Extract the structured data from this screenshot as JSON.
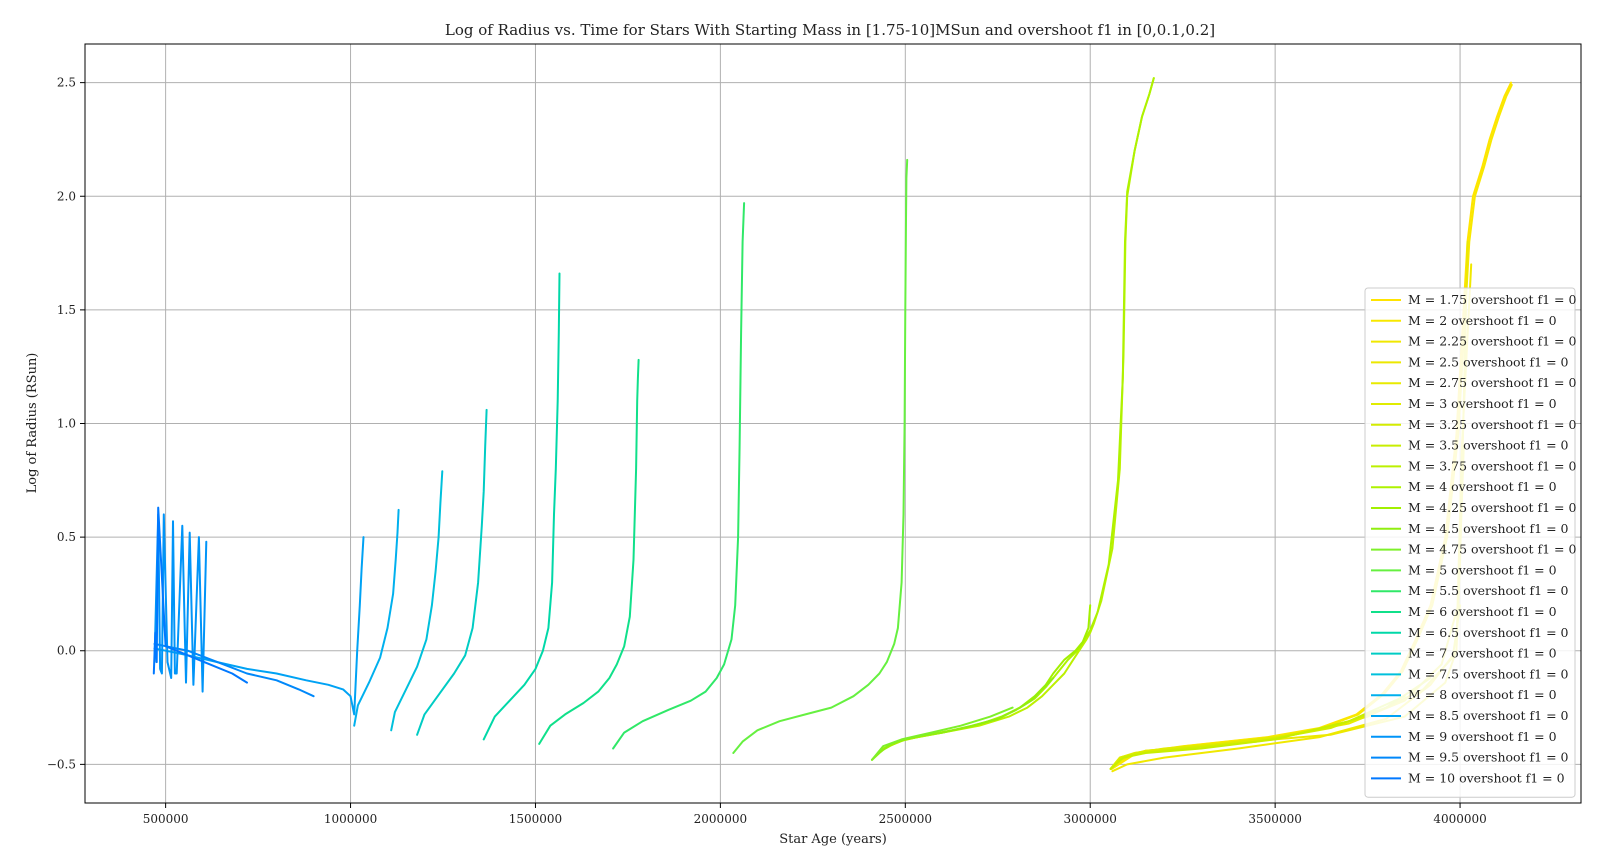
{
  "chart_data": {
    "type": "line",
    "title": "Log of Radius vs. Time for Stars With Starting Mass in [1.75-10]MSun and overshoot f1 in [0,0.1,0.2]",
    "xlabel": "Star Age (years)",
    "ylabel": "Log of Radius (RSun)",
    "xlim": [
      282000,
      4327000
    ],
    "ylim": [
      -0.67,
      2.67
    ],
    "xticks": [
      500000,
      1000000,
      1500000,
      2000000,
      2500000,
      3000000,
      3500000,
      4000000
    ],
    "xtick_labels": [
      "500000",
      "1000000",
      "1500000",
      "2000000",
      "2500000",
      "3000000",
      "3500000",
      "4000000"
    ],
    "yticks": [
      -0.5,
      0.0,
      0.5,
      1.0,
      1.5,
      2.0,
      2.5
    ],
    "ytick_labels": [
      "−0.5",
      "0.0",
      "0.5",
      "1.0",
      "1.5",
      "2.0",
      "2.5"
    ],
    "grid": true,
    "legend_position": "right",
    "series": [
      {
        "name": "M = 1.75 overshoot f1 = 0",
        "color": "#ffe400",
        "x": [
          3055000,
          3120000,
          3250000,
          3480000,
          3620000,
          3720000,
          3790000,
          3840000,
          3880000,
          3920000,
          3960000,
          3990000,
          4020000,
          4035000,
          4060000,
          4080000,
          4100000,
          4120000,
          4138000
        ],
        "y": [
          -0.52,
          -0.45,
          -0.42,
          -0.38,
          -0.34,
          -0.28,
          -0.19,
          -0.09,
          0.05,
          0.2,
          0.5,
          0.95,
          1.8,
          2.0,
          2.13,
          2.25,
          2.35,
          2.44,
          2.5
        ]
      },
      {
        "name": "M = 2 overshoot f1 = 0",
        "color": "#f8e800",
        "x": [
          3058000,
          3125000,
          3255000,
          3485000,
          3625000,
          3725000,
          3795000,
          3845000,
          3885000,
          3925000,
          3965000,
          3995000,
          4025000,
          4040000,
          4065000,
          4085000,
          4105000,
          4125000,
          4140000
        ],
        "y": [
          -0.52,
          -0.45,
          -0.42,
          -0.38,
          -0.34,
          -0.28,
          -0.19,
          -0.09,
          0.05,
          0.2,
          0.5,
          0.95,
          1.8,
          2.0,
          2.13,
          2.25,
          2.35,
          2.44,
          2.49
        ]
      },
      {
        "name": "M = 2.25 overshoot f1 = 0",
        "color": "#f0e800",
        "x": [
          3060000,
          3100000,
          3200000,
          3400000,
          3620000,
          3800000,
          3920000,
          3990000,
          3995000,
          4005000,
          4030000
        ],
        "y": [
          -0.53,
          -0.5,
          -0.47,
          -0.43,
          -0.38,
          -0.3,
          -0.15,
          0.0,
          0.3,
          0.9,
          1.7
        ]
      },
      {
        "name": "M = 2.5 overshoot f1 = 0",
        "color": "#ece800",
        "x": [
          3055000,
          3080000,
          3150000,
          3350000,
          3650000,
          3850000,
          3960000,
          3990000,
          4000000,
          4010000,
          4020000
        ],
        "y": [
          -0.52,
          -0.48,
          -0.44,
          -0.41,
          -0.37,
          -0.29,
          -0.14,
          0.0,
          0.4,
          1.1,
          1.8
        ]
      },
      {
        "name": "M = 2.75 overshoot f1 = 0",
        "color": "#e8ea00",
        "x": [
          3055000,
          3080000,
          3150000,
          3300000,
          3500000,
          3700000,
          3850000,
          3950000,
          3995000,
          4010000
        ],
        "y": [
          -0.52,
          -0.47,
          -0.44,
          -0.42,
          -0.38,
          -0.32,
          -0.22,
          -0.06,
          0.2,
          0.9
        ]
      },
      {
        "name": "M = 3 overshoot f1 = 0",
        "color": "#e0ec00",
        "x": [
          3055000,
          3080000,
          3120000,
          3200000,
          3350000,
          3550000,
          3750000,
          3900000,
          3980000,
          4000000
        ],
        "y": [
          -0.52,
          -0.47,
          -0.45,
          -0.43,
          -0.41,
          -0.37,
          -0.29,
          -0.17,
          -0.03,
          0.2
        ]
      },
      {
        "name": "M = 3.25 overshoot f1 = 0",
        "color": "#d4ec00",
        "x": [
          3055000,
          3085000,
          3130000,
          3250000,
          3450000,
          3650000,
          3800000,
          3920000
        ],
        "y": [
          -0.52,
          -0.47,
          -0.45,
          -0.43,
          -0.4,
          -0.34,
          -0.25,
          -0.12
        ]
      },
      {
        "name": "M = 3.5 overshoot f1 = 0",
        "color": "#c8ee00",
        "x": [
          3055000,
          3090000,
          3150000,
          3300000,
          3500000,
          3700000,
          3850000
        ],
        "y": [
          -0.52,
          -0.47,
          -0.45,
          -0.43,
          -0.39,
          -0.31,
          -0.2
        ]
      },
      {
        "name": "M = 3.75 overshoot f1 = 0",
        "color": "#bcf000",
        "x": [
          2410000,
          2440000,
          2500000,
          2600000,
          2700000,
          2780000,
          2830000,
          2870000,
          2900000,
          2930000,
          2950000,
          2970000,
          2990000,
          3000000,
          3010000,
          3030000,
          3060000,
          3080000,
          3090000,
          3095000,
          3100000,
          3120000,
          3140000,
          3160000,
          3172000
        ],
        "y": [
          -0.48,
          -0.43,
          -0.39,
          -0.36,
          -0.33,
          -0.29,
          -0.25,
          -0.2,
          -0.15,
          -0.1,
          -0.05,
          0.0,
          0.05,
          0.08,
          0.12,
          0.22,
          0.45,
          0.8,
          1.3,
          1.8,
          2.0,
          2.2,
          2.35,
          2.45,
          2.52
        ]
      },
      {
        "name": "M = 4 overshoot f1 = 0",
        "color": "#aef200",
        "x": [
          2410000,
          2440000,
          2500000,
          2600000,
          2690000,
          2760000,
          2810000,
          2850000,
          2880000,
          2910000,
          2940000,
          2965000,
          2985000,
          3000000,
          3020000,
          3050000,
          3075000,
          3088000,
          3094000,
          3100000,
          3120000,
          3140000,
          3160000,
          3172000
        ],
        "y": [
          -0.48,
          -0.43,
          -0.39,
          -0.36,
          -0.33,
          -0.29,
          -0.25,
          -0.21,
          -0.16,
          -0.1,
          -0.04,
          0.0,
          0.05,
          0.09,
          0.17,
          0.38,
          0.75,
          1.2,
          1.8,
          2.02,
          2.2,
          2.35,
          2.45,
          2.52
        ]
      },
      {
        "name": "M = 4.25 overshoot f1 = 0",
        "color": "#a2f000",
        "x": [
          2410000,
          2435000,
          2480000,
          2560000,
          2660000,
          2750000,
          2810000,
          2850000,
          2880000,
          2900000,
          2930000,
          2960000,
          2980000,
          2995000,
          3000000
        ],
        "y": [
          -0.48,
          -0.44,
          -0.4,
          -0.37,
          -0.34,
          -0.3,
          -0.25,
          -0.2,
          -0.15,
          -0.1,
          -0.04,
          0.0,
          0.04,
          0.1,
          0.2
        ]
      },
      {
        "name": "M = 4.5 overshoot f1 = 0",
        "color": "#90ee10",
        "x": [
          2410000,
          2430000,
          2460000,
          2520000,
          2600000,
          2680000,
          2750000,
          2800000,
          2840000,
          2870000,
          2900000
        ],
        "y": [
          -0.48,
          -0.45,
          -0.41,
          -0.38,
          -0.36,
          -0.33,
          -0.3,
          -0.26,
          -0.22,
          -0.17,
          -0.12
        ]
      },
      {
        "name": "M = 4.75 overshoot f1 = 0",
        "color": "#7ef02a",
        "x": [
          2410000,
          2440000,
          2490000,
          2570000,
          2650000,
          2730000,
          2790000
        ],
        "y": [
          -0.48,
          -0.42,
          -0.39,
          -0.36,
          -0.33,
          -0.29,
          -0.25
        ]
      },
      {
        "name": "M = 5 overshoot f1 = 0",
        "color": "#66f040",
        "x": [
          2035000,
          2060000,
          2100000,
          2160000,
          2230000,
          2300000,
          2360000,
          2400000,
          2430000,
          2450000,
          2470000,
          2480000,
          2490000,
          2495000,
          2498000,
          2500000,
          2502000,
          2503000,
          2505000
        ],
        "y": [
          -0.45,
          -0.4,
          -0.35,
          -0.31,
          -0.28,
          -0.25,
          -0.2,
          -0.15,
          -0.1,
          -0.05,
          0.03,
          0.1,
          0.3,
          0.6,
          1.0,
          1.5,
          1.9,
          2.08,
          2.16
        ]
      },
      {
        "name": "M = 5.5 overshoot f1 = 0",
        "color": "#30e868",
        "x": [
          1710000,
          1740000,
          1790000,
          1860000,
          1920000,
          1960000,
          1990000,
          2010000,
          2030000,
          2040000,
          2048000,
          2052000,
          2056000,
          2060000,
          2064000
        ],
        "y": [
          -0.43,
          -0.36,
          -0.31,
          -0.26,
          -0.22,
          -0.18,
          -0.12,
          -0.06,
          0.05,
          0.2,
          0.5,
          0.9,
          1.4,
          1.8,
          1.97
        ]
      },
      {
        "name": "M = 6 overshoot f1 = 0",
        "color": "#10e08a",
        "x": [
          1510000,
          1540000,
          1580000,
          1630000,
          1670000,
          1700000,
          1720000,
          1740000,
          1755000,
          1765000,
          1772000,
          1775000,
          1777000,
          1779000
        ],
        "y": [
          -0.41,
          -0.33,
          -0.28,
          -0.23,
          -0.18,
          -0.12,
          -0.06,
          0.02,
          0.15,
          0.4,
          0.8,
          1.1,
          1.2,
          1.28
        ]
      },
      {
        "name": "M = 6.5 overshoot f1 = 0",
        "color": "#00d8a8",
        "x": [
          1360000,
          1390000,
          1430000,
          1470000,
          1500000,
          1520000,
          1535000,
          1545000,
          1550000,
          1555000,
          1560000,
          1563000,
          1565000
        ],
        "y": [
          -0.39,
          -0.29,
          -0.22,
          -0.15,
          -0.08,
          0.0,
          0.1,
          0.3,
          0.6,
          0.8,
          1.1,
          1.4,
          1.66
        ]
      },
      {
        "name": "M = 7 overshoot f1 = 0",
        "color": "#00ccc4",
        "x": [
          1180000,
          1200000,
          1240000,
          1280000,
          1310000,
          1330000,
          1345000,
          1355000,
          1360000,
          1364000,
          1368000
        ],
        "y": [
          -0.37,
          -0.28,
          -0.19,
          -0.1,
          -0.02,
          0.1,
          0.3,
          0.55,
          0.7,
          0.9,
          1.06
        ]
      },
      {
        "name": "M = 7.5 overshoot f1 = 0",
        "color": "#00c0dc",
        "x": [
          1110000,
          1120000,
          1150000,
          1180000,
          1205000,
          1220000,
          1230000,
          1238000,
          1243000,
          1248000
        ],
        "y": [
          -0.35,
          -0.27,
          -0.17,
          -0.07,
          0.05,
          0.2,
          0.35,
          0.5,
          0.65,
          0.79
        ]
      },
      {
        "name": "M = 8 overshoot f1 = 0",
        "color": "#00b0ee",
        "x": [
          1010000,
          1020000,
          1050000,
          1080000,
          1100000,
          1115000,
          1122000,
          1127000,
          1130000
        ],
        "y": [
          -0.33,
          -0.24,
          -0.14,
          -0.03,
          0.1,
          0.25,
          0.4,
          0.52,
          0.62
        ]
      },
      {
        "name": "M = 8.5 overshoot f1 = 0",
        "color": "#00a2f4",
        "x": [
          470000,
          500000,
          560000,
          640000,
          720000,
          800000,
          880000,
          940000,
          980000,
          1000000,
          1010000,
          1018000,
          1025000,
          1030000,
          1035000
        ],
        "y": [
          0.01,
          0.0,
          -0.02,
          -0.05,
          -0.08,
          -0.1,
          -0.13,
          -0.15,
          -0.17,
          -0.2,
          -0.28,
          0.0,
          0.2,
          0.36,
          0.5
        ]
      },
      {
        "name": "M = 9 overshoot f1 = 0",
        "color": "#0094f8",
        "x": [
          470000,
          480000,
          485000,
          490000,
          495000,
          505000,
          515000,
          520000,
          525000,
          530000,
          545000,
          555000,
          565000,
          575000,
          590000,
          600000,
          610000
        ],
        "y": [
          -0.05,
          0.6,
          -0.08,
          -0.1,
          0.6,
          -0.05,
          -0.12,
          0.57,
          -0.1,
          -0.1,
          0.55,
          -0.14,
          0.52,
          -0.15,
          0.5,
          -0.18,
          0.48
        ]
      },
      {
        "name": "M = 9.5 overshoot f1 = 0",
        "color": "#0088fa",
        "x": [
          470000,
          500000,
          560000,
          640000,
          720000,
          800000,
          860000,
          900000
        ],
        "y": [
          0.03,
          0.02,
          0.0,
          -0.05,
          -0.1,
          -0.13,
          -0.17,
          -0.2
        ]
      },
      {
        "name": "M = 10 overshoot f1 = 0",
        "color": "#0078ff",
        "x": [
          468000,
          472000,
          476000,
          480000,
          500000,
          560000,
          620000,
          680000,
          720000
        ],
        "y": [
          -0.1,
          0.08,
          -0.05,
          0.63,
          0.02,
          -0.02,
          -0.06,
          -0.1,
          -0.14
        ]
      }
    ]
  }
}
